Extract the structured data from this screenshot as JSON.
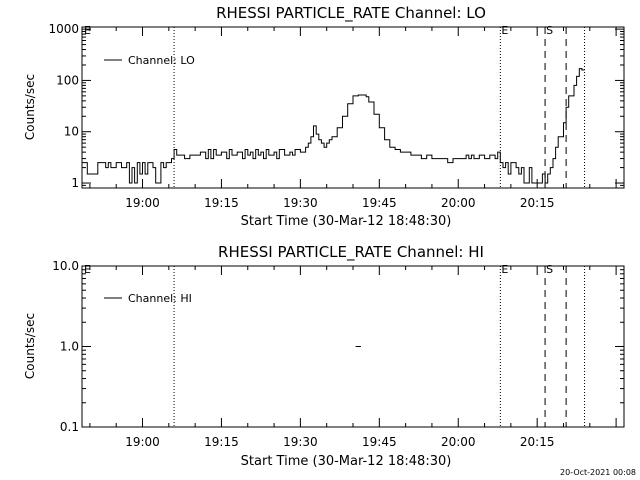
{
  "footer": {
    "timestamp": "20-Oct-2021 00:08"
  },
  "chart_data": [
    {
      "type": "line",
      "title": "RHESSI PARTICLE_RATE Channel: LO",
      "xlabel": "Start Time (30-Mar-12 18:48:30)",
      "ylabel": "Counts/sec",
      "yscale": "log",
      "ylim": [
        0.8,
        1100
      ],
      "yticks": [
        {
          "v": 1,
          "label": "1"
        },
        {
          "v": 10,
          "label": "10"
        },
        {
          "v": 100,
          "label": "100"
        },
        {
          "v": 1000,
          "label": "1000"
        }
      ],
      "xlim": [
        "18:48:30",
        "20:31:30"
      ],
      "xticks": [
        "19:00",
        "19:15",
        "19:30",
        "19:45",
        "20:00",
        "20:15"
      ],
      "legend": {
        "placement": "top-left",
        "entries": [
          "Channel: LO"
        ]
      },
      "flags": [
        {
          "x": "19:06:00",
          "label": "",
          "style": "dotted"
        },
        {
          "x": "20:08:00",
          "label": "E",
          "style": "dotted"
        },
        {
          "x": "20:16:30",
          "label": "S",
          "style": "dashed"
        },
        {
          "x": "20:20:30",
          "label": "",
          "style": "dashed"
        },
        {
          "x": "20:24:00",
          "label": "",
          "style": "dotted"
        }
      ],
      "corner_label": "E",
      "series": [
        {
          "name": "Channel: LO",
          "points": [
            [
              "18:48:30",
              2.5
            ],
            [
              "18:49:00",
              2.5
            ],
            [
              "18:49:30",
              1.5
            ],
            [
              "18:50:00",
              1.5
            ],
            [
              "18:51:00",
              1.5
            ],
            [
              "18:51:30",
              2.5
            ],
            [
              "18:52:00",
              2.5
            ],
            [
              "18:53:00",
              2.0
            ],
            [
              "18:53:30",
              2.5
            ],
            [
              "18:54:00",
              2.0
            ],
            [
              "18:55:00",
              2.5
            ],
            [
              "18:56:00",
              2.0
            ],
            [
              "18:57:00",
              2.5
            ],
            [
              "18:57:30",
              1.0
            ],
            [
              "18:58:00",
              2.0
            ],
            [
              "18:58:30",
              1.0
            ],
            [
              "18:59:00",
              2.5
            ],
            [
              "18:59:30",
              1.5
            ],
            [
              "19:00:00",
              2.5
            ],
            [
              "19:00:30",
              1.5
            ],
            [
              "19:01:00",
              2.5
            ],
            [
              "19:02:00",
              2.0
            ],
            [
              "19:02:30",
              1.0
            ],
            [
              "19:03:00",
              1.0
            ],
            [
              "19:03:30",
              2.5
            ],
            [
              "19:04:00",
              2.0
            ],
            [
              "19:04:30",
              2.5
            ],
            [
              "19:05:00",
              2.5
            ],
            [
              "19:05:30",
              3.0
            ],
            [
              "19:06:00",
              4.5
            ],
            [
              "19:06:30",
              3.5
            ],
            [
              "19:07:00",
              3.5
            ],
            [
              "19:08:00",
              3.0
            ],
            [
              "19:09:00",
              3.5
            ],
            [
              "19:10:00",
              3.5
            ],
            [
              "19:11:00",
              4.0
            ],
            [
              "19:12:00",
              3.0
            ],
            [
              "19:12:30",
              4.5
            ],
            [
              "19:13:00",
              3.0
            ],
            [
              "19:13:30",
              4.5
            ],
            [
              "19:14:00",
              3.5
            ],
            [
              "19:15:00",
              4.0
            ],
            [
              "19:16:00",
              3.0
            ],
            [
              "19:16:30",
              4.5
            ],
            [
              "19:17:00",
              3.5
            ],
            [
              "19:18:00",
              4.0
            ],
            [
              "19:19:00",
              3.0
            ],
            [
              "19:19:30",
              4.5
            ],
            [
              "19:20:00",
              3.5
            ],
            [
              "19:20:30",
              4.0
            ],
            [
              "19:21:00",
              3.0
            ],
            [
              "19:21:30",
              4.5
            ],
            [
              "19:22:00",
              3.5
            ],
            [
              "19:22:30",
              4.0
            ],
            [
              "19:23:00",
              3.0
            ],
            [
              "19:23:30",
              4.5
            ],
            [
              "19:24:00",
              3.5
            ],
            [
              "19:25:00",
              4.0
            ],
            [
              "19:25:30",
              3.0
            ],
            [
              "19:26:00",
              4.5
            ],
            [
              "19:27:00",
              3.5
            ],
            [
              "19:28:00",
              4.0
            ],
            [
              "19:28:30",
              3.5
            ],
            [
              "19:29:00",
              4.5
            ],
            [
              "19:30:00",
              4.0
            ],
            [
              "19:31:00",
              5.0
            ],
            [
              "19:31:30",
              6.0
            ],
            [
              "19:32:00",
              8.0
            ],
            [
              "19:32:30",
              13.0
            ],
            [
              "19:33:00",
              9.0
            ],
            [
              "19:33:30",
              7.0
            ],
            [
              "19:34:00",
              6.0
            ],
            [
              "19:34:30",
              5.0
            ],
            [
              "19:35:00",
              6.0
            ],
            [
              "19:35:30",
              7.0
            ],
            [
              "19:36:00",
              8.0
            ],
            [
              "19:37:00",
              12.0
            ],
            [
              "19:38:00",
              20.0
            ],
            [
              "19:39:00",
              35.0
            ],
            [
              "19:40:00",
              50.0
            ],
            [
              "19:41:00",
              52.0
            ],
            [
              "19:42:00",
              52.0
            ],
            [
              "19:42:30",
              48.0
            ],
            [
              "19:43:00",
              38.0
            ],
            [
              "19:44:00",
              22.0
            ],
            [
              "19:45:00",
              12.0
            ],
            [
              "19:46:00",
              7.0
            ],
            [
              "19:47:00",
              5.0
            ],
            [
              "19:48:00",
              4.5
            ],
            [
              "19:49:00",
              4.0
            ],
            [
              "19:50:00",
              4.0
            ],
            [
              "19:51:00",
              3.5
            ],
            [
              "19:52:00",
              3.5
            ],
            [
              "19:53:00",
              3.0
            ],
            [
              "19:54:00",
              3.5
            ],
            [
              "19:55:00",
              3.0
            ],
            [
              "19:56:00",
              3.0
            ],
            [
              "19:57:00",
              3.0
            ],
            [
              "19:58:00",
              2.5
            ],
            [
              "19:59:00",
              3.0
            ],
            [
              "20:00:00",
              3.0
            ],
            [
              "20:01:00",
              3.0
            ],
            [
              "20:01:30",
              3.5
            ],
            [
              "20:02:00",
              3.0
            ],
            [
              "20:02:30",
              3.5
            ],
            [
              "20:03:00",
              3.0
            ],
            [
              "20:04:00",
              3.5
            ],
            [
              "20:05:00",
              3.0
            ],
            [
              "20:06:00",
              3.5
            ],
            [
              "20:07:00",
              3.0
            ],
            [
              "20:07:30",
              4.0
            ],
            [
              "20:08:00",
              2.5
            ],
            [
              "20:08:30",
              2.0
            ],
            [
              "20:09:00",
              2.5
            ],
            [
              "20:09:30",
              1.5
            ],
            [
              "20:10:00",
              2.5
            ],
            [
              "20:11:00",
              2.0
            ],
            [
              "20:11:30",
              1.5
            ],
            [
              "20:12:00",
              2.0
            ],
            [
              "20:12:30",
              1.0
            ],
            [
              "20:13:00",
              1.0
            ],
            [
              "20:13:30",
              2.0
            ],
            [
              "20:14:00",
              1.0
            ],
            [
              "20:15:00",
              1.0
            ],
            [
              "20:16:00",
              1.5
            ],
            [
              "20:16:30",
              1.0
            ],
            [
              "20:17:00",
              1.5
            ],
            [
              "20:17:30",
              2.0
            ],
            [
              "20:18:00",
              3.0
            ],
            [
              "20:18:30",
              5.0
            ],
            [
              "20:19:00",
              8.0
            ],
            [
              "20:20:00",
              15.0
            ],
            [
              "20:20:30",
              30.0
            ],
            [
              "20:21:00",
              50.0
            ],
            [
              "20:22:00",
              80.0
            ],
            [
              "20:22:30",
              120.0
            ],
            [
              "20:23:00",
              170.0
            ],
            [
              "20:23:30",
              160.0
            ]
          ]
        }
      ]
    },
    {
      "type": "line",
      "title": "RHESSI PARTICLE_RATE Channel: HI",
      "xlabel": "Start Time (30-Mar-12 18:48:30)",
      "ylabel": "Counts/sec",
      "yscale": "log",
      "ylim": [
        0.1,
        10
      ],
      "yticks": [
        {
          "v": 0.1,
          "label": "0.1"
        },
        {
          "v": 1,
          "label": "1.0"
        },
        {
          "v": 10,
          "label": "10.0"
        }
      ],
      "xlim": [
        "18:48:30",
        "20:31:30"
      ],
      "xticks": [
        "19:00",
        "19:15",
        "19:30",
        "19:45",
        "20:00",
        "20:15"
      ],
      "legend": {
        "placement": "top-left",
        "entries": [
          "Channel: HI"
        ]
      },
      "flags": [
        {
          "x": "19:06:00",
          "label": "",
          "style": "dotted"
        },
        {
          "x": "20:08:00",
          "label": "E",
          "style": "dotted"
        },
        {
          "x": "20:16:30",
          "label": "S",
          "style": "dashed"
        },
        {
          "x": "20:20:30",
          "label": "",
          "style": "dashed"
        },
        {
          "x": "20:24:00",
          "label": "",
          "style": "dotted"
        }
      ],
      "corner_label": "E",
      "series": [
        {
          "name": "Channel: HI",
          "points": [
            [
              "19:40:30",
              1.0
            ],
            [
              "19:41:00",
              1.0
            ]
          ]
        }
      ]
    }
  ]
}
